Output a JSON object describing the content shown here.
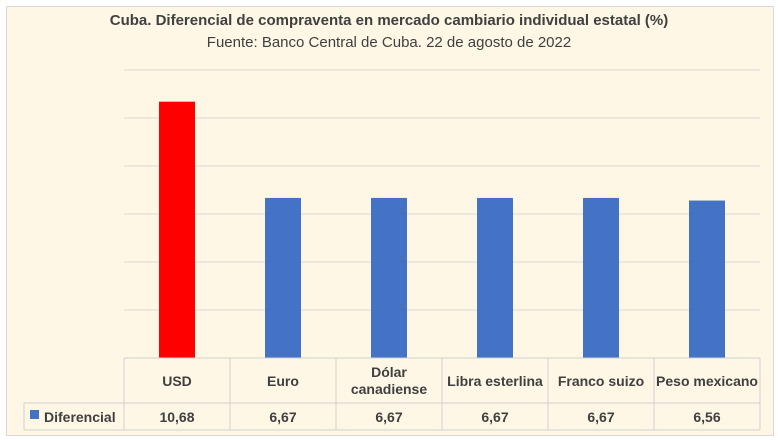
{
  "chart_data": {
    "type": "bar",
    "title": "Cuba. Diferencial de compraventa en mercado cambiario individual estatal (%)",
    "subtitle": "Fuente: Banco Central de Cuba. 22 de agosto de 2022",
    "categories": [
      "USD",
      "Euro",
      "Dólar canadiense",
      "Libra esterlina",
      "Franco suizo",
      "Peso mexicano"
    ],
    "series": [
      {
        "name": "Diferencial",
        "values": [
          10.68,
          6.67,
          6.67,
          6.67,
          6.67,
          6.56
        ],
        "value_labels": [
          "10,68",
          "6,67",
          "6,67",
          "6,67",
          "6,67",
          "6,56"
        ],
        "color": "#4472c4",
        "highlight_color": "#ff0000",
        "highlight_index": 0
      }
    ],
    "ylim": [
      0,
      12
    ],
    "ytick_step": 2,
    "grid": true,
    "legend": "data-table"
  }
}
